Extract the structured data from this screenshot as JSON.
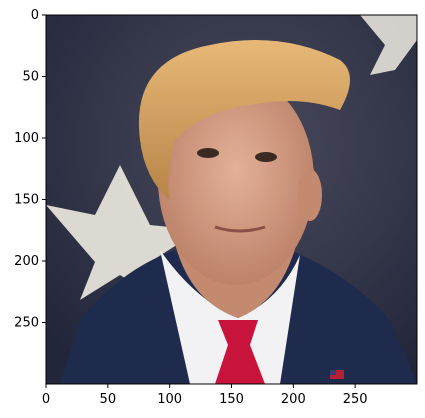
{
  "chart_data": {
    "type": "image",
    "xlim": [
      0,
      300
    ],
    "ylim": [
      300,
      0
    ],
    "x_ticks": [
      0,
      50,
      100,
      150,
      200,
      250
    ],
    "y_ticks": [
      0,
      50,
      100,
      150,
      200,
      250
    ],
    "x_tick_labels": [
      "0",
      "50",
      "100",
      "150",
      "200",
      "250"
    ],
    "y_tick_labels": [
      "0",
      "50",
      "100",
      "150",
      "200",
      "250"
    ],
    "grid": false
  },
  "image": {
    "subject": "portrait-of-man-in-suit-and-red-tie",
    "colors": {
      "background": "#2a2f45",
      "star": "#e6e2da",
      "hair": "#d9a35c",
      "skin": "#d9a58a",
      "suit": "#1f2b4d",
      "shirt": "#f2f2f4",
      "tie": "#c8143c"
    }
  }
}
